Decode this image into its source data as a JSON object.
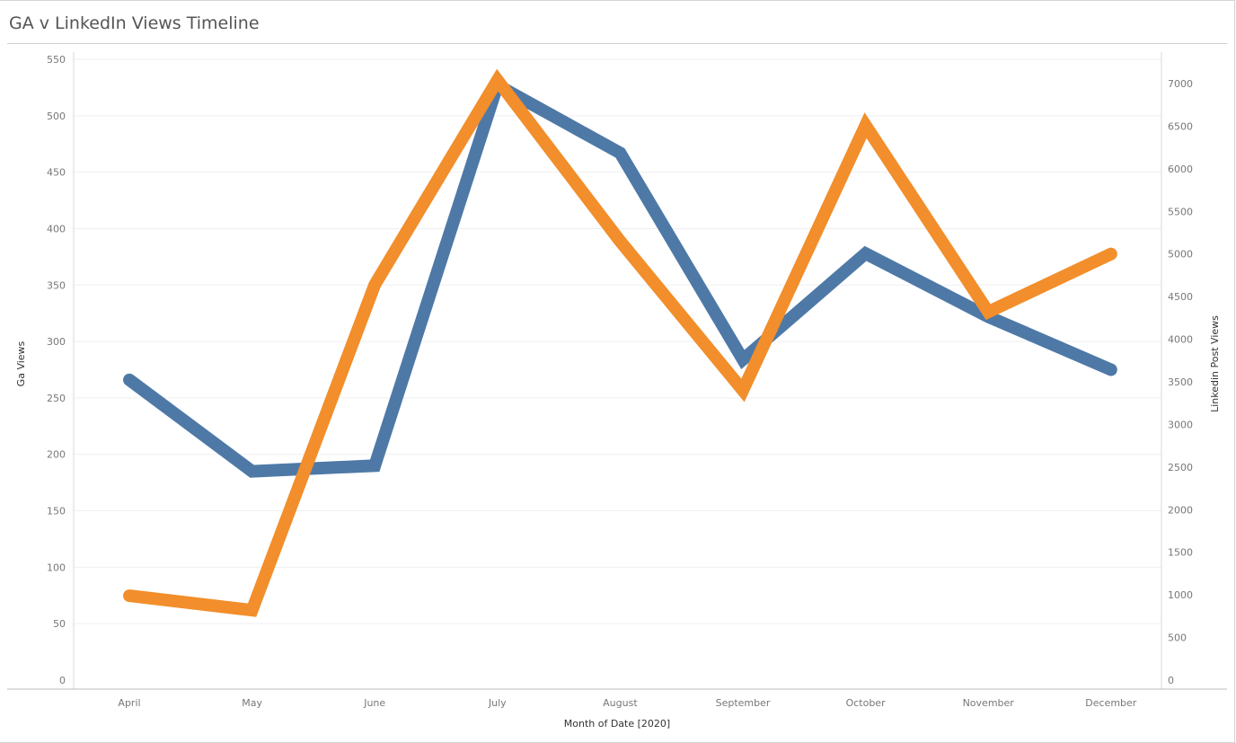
{
  "title": "GA v LinkedIn Views Timeline",
  "chart_data": {
    "type": "line",
    "title": "GA v LinkedIn Views Timeline",
    "categories": [
      "April",
      "May",
      "June",
      "July",
      "August",
      "September",
      "October",
      "November",
      "December"
    ],
    "xlabel": "Month of Date [2020]",
    "ylabel": "Ga Views",
    "ylabel_right": "Linkedin Post Views",
    "ylim": [
      0,
      550
    ],
    "ylim_right": [
      0,
      7000
    ],
    "yticks": [
      0,
      50,
      100,
      150,
      200,
      250,
      300,
      350,
      400,
      450,
      500,
      550
    ],
    "yticks_right": [
      0,
      500,
      1000,
      1500,
      2000,
      2500,
      3000,
      3500,
      4000,
      4500,
      5000,
      5500,
      6000,
      6500,
      7000
    ],
    "grid": true,
    "series": [
      {
        "axis": "left",
        "color": "#4e79a7",
        "values": [
          266,
          185,
          190,
          527,
          467,
          284,
          378,
          322,
          275
        ]
      },
      {
        "axis": "right",
        "color": "#f28e2b",
        "values": [
          990,
          820,
          4640,
          7040,
          5150,
          3400,
          6510,
          4320,
          5000
        ]
      }
    ]
  }
}
